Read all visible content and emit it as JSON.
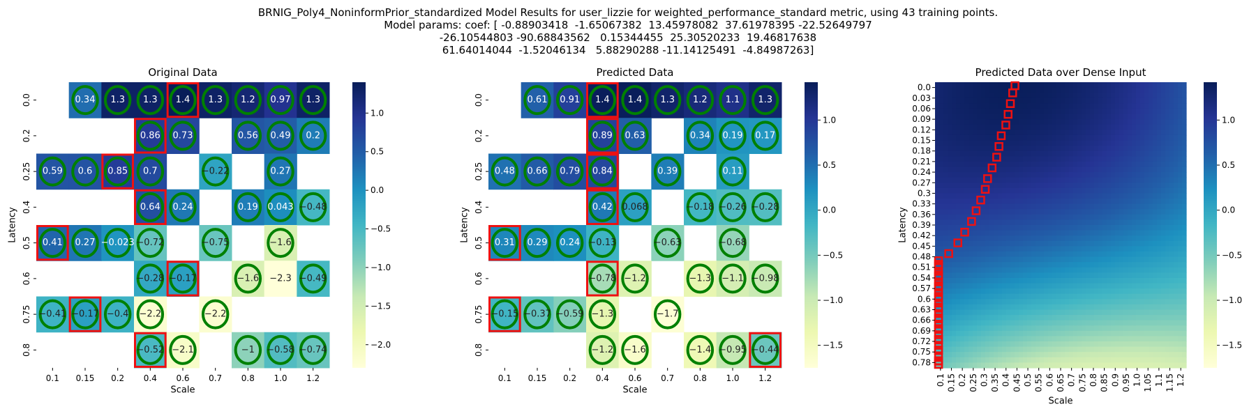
{
  "figure": {
    "title_lines": [
      "BRNIG_Poly4_NoninformPrior_standardized Model Results for user_lizzie for weighted_performance_standard metric, using 43 training points.",
      "Model params: coef: [ -0.88903418  -1.65067382  13.45978082  37.61978395 -22.52649797",
      "-26.10544803 -90.68843562   0.15344455  25.30520233  19.46817638",
      "61.64014044  -1.52046134   5.88290288 -11.14125491  -4.84987263]"
    ]
  },
  "colormap": {
    "name": "YlGnBu",
    "stops": [
      "#ffffd9",
      "#edf8b1",
      "#c7e9b4",
      "#7fcdbb",
      "#41b6c4",
      "#1d91c0",
      "#225ea8",
      "#253494",
      "#081d58"
    ],
    "ring_color": "#008000",
    "box_color": "#ee1111"
  },
  "chart_data": [
    {
      "type": "heatmap",
      "title": "Original Data",
      "xlabel": "Scale",
      "ylabel": "Latency",
      "x": [
        "0.1",
        "0.15",
        "0.2",
        "0.4",
        "0.6",
        "0.7",
        "0.8",
        "1.0",
        "1.2"
      ],
      "y": [
        "0.0",
        "0.2",
        "0.25",
        "0.4",
        "0.5",
        "0.6",
        "0.75",
        "0.8"
      ],
      "values": [
        [
          null,
          0.34,
          1.3,
          1.3,
          1.4,
          1.3,
          1.2,
          0.97,
          1.3
        ],
        [
          null,
          null,
          null,
          0.86,
          0.73,
          null,
          0.56,
          0.49,
          0.2
        ],
        [
          0.59,
          0.6,
          0.85,
          0.7,
          null,
          -0.22,
          null,
          0.27,
          null
        ],
        [
          null,
          null,
          null,
          0.64,
          0.24,
          null,
          0.19,
          0.043,
          -0.48
        ],
        [
          0.41,
          0.27,
          -0.023,
          -0.72,
          null,
          -0.75,
          null,
          -1.6,
          null
        ],
        [
          null,
          null,
          null,
          -0.28,
          -0.17,
          null,
          -1.6,
          -2.3,
          -0.49
        ],
        [
          -0.41,
          -0.17,
          -0.4,
          -2.2,
          null,
          -2.2,
          null,
          null,
          null
        ],
        [
          null,
          null,
          null,
          -0.52,
          -2.1,
          null,
          -1,
          -0.58,
          -0.74
        ]
      ],
      "rings": [
        [
          0,
          1
        ],
        [
          0,
          2
        ],
        [
          0,
          3
        ],
        [
          0,
          4
        ],
        [
          0,
          5
        ],
        [
          0,
          6
        ],
        [
          0,
          7
        ],
        [
          0,
          8
        ],
        [
          1,
          3
        ],
        [
          1,
          4
        ],
        [
          1,
          6
        ],
        [
          1,
          7
        ],
        [
          1,
          8
        ],
        [
          2,
          0
        ],
        [
          2,
          1
        ],
        [
          2,
          2
        ],
        [
          2,
          3
        ],
        [
          2,
          5
        ],
        [
          2,
          7
        ],
        [
          3,
          3
        ],
        [
          3,
          4
        ],
        [
          3,
          6
        ],
        [
          3,
          7
        ],
        [
          3,
          8
        ],
        [
          4,
          0
        ],
        [
          4,
          1
        ],
        [
          4,
          2
        ],
        [
          4,
          3
        ],
        [
          4,
          5
        ],
        [
          4,
          7
        ],
        [
          5,
          3
        ],
        [
          5,
          4
        ],
        [
          5,
          6
        ],
        [
          5,
          8
        ],
        [
          6,
          0
        ],
        [
          6,
          1
        ],
        [
          6,
          2
        ],
        [
          6,
          3
        ],
        [
          6,
          5
        ],
        [
          7,
          3
        ],
        [
          7,
          4
        ],
        [
          7,
          6
        ],
        [
          7,
          7
        ],
        [
          7,
          8
        ]
      ],
      "boxes": [
        [
          0,
          4
        ],
        [
          1,
          3
        ],
        [
          2,
          2
        ],
        [
          3,
          3
        ],
        [
          4,
          0
        ],
        [
          5,
          4
        ],
        [
          6,
          1
        ],
        [
          7,
          3
        ]
      ],
      "colorbar": {
        "vmin": -2.3,
        "vmax": 1.4,
        "ticks": [
          1.0,
          0.5,
          0.0,
          -0.5,
          -1.0,
          -1.5,
          -2.0
        ],
        "tick_labels": [
          "1.0",
          "0.5",
          "0.0",
          "−0.5",
          "−1.0",
          "−1.5",
          "−2.0"
        ]
      }
    },
    {
      "type": "heatmap",
      "title": "Predicted Data",
      "xlabel": "Scale",
      "ylabel": "Latency",
      "x": [
        "0.1",
        "0.15",
        "0.2",
        "0.4",
        "0.6",
        "0.7",
        "0.8",
        "1.0",
        "1.2"
      ],
      "y": [
        "0.0",
        "0.2",
        "0.25",
        "0.4",
        "0.5",
        "0.6",
        "0.75",
        "0.8"
      ],
      "values": [
        [
          null,
          0.61,
          0.91,
          1.4,
          1.4,
          1.3,
          1.2,
          1.1,
          1.3
        ],
        [
          null,
          null,
          null,
          0.89,
          0.63,
          null,
          0.34,
          0.19,
          0.17
        ],
        [
          0.48,
          0.66,
          0.79,
          0.84,
          null,
          0.39,
          null,
          0.11,
          null
        ],
        [
          null,
          null,
          null,
          0.42,
          0.068,
          null,
          -0.18,
          -0.26,
          -0.28
        ],
        [
          0.31,
          0.29,
          0.24,
          -0.13,
          null,
          -0.63,
          null,
          -0.68,
          null
        ],
        [
          null,
          null,
          null,
          -0.78,
          -1.2,
          null,
          -1.3,
          -1.1,
          -0.98
        ],
        [
          -0.15,
          -0.37,
          -0.59,
          -1.3,
          null,
          -1.7,
          null,
          null,
          null
        ],
        [
          null,
          null,
          null,
          -1.2,
          -1.6,
          null,
          -1.4,
          -0.95,
          -0.44
        ]
      ],
      "rings": [
        [
          0,
          1
        ],
        [
          0,
          2
        ],
        [
          0,
          3
        ],
        [
          0,
          4
        ],
        [
          0,
          5
        ],
        [
          0,
          6
        ],
        [
          0,
          7
        ],
        [
          0,
          8
        ],
        [
          1,
          3
        ],
        [
          1,
          4
        ],
        [
          1,
          6
        ],
        [
          1,
          7
        ],
        [
          1,
          8
        ],
        [
          2,
          0
        ],
        [
          2,
          1
        ],
        [
          2,
          2
        ],
        [
          2,
          3
        ],
        [
          2,
          5
        ],
        [
          2,
          7
        ],
        [
          3,
          3
        ],
        [
          3,
          4
        ],
        [
          3,
          6
        ],
        [
          3,
          7
        ],
        [
          3,
          8
        ],
        [
          4,
          0
        ],
        [
          4,
          1
        ],
        [
          4,
          2
        ],
        [
          4,
          3
        ],
        [
          4,
          5
        ],
        [
          4,
          7
        ],
        [
          5,
          3
        ],
        [
          5,
          4
        ],
        [
          5,
          6
        ],
        [
          5,
          7
        ],
        [
          5,
          8
        ],
        [
          6,
          0
        ],
        [
          6,
          1
        ],
        [
          6,
          2
        ],
        [
          6,
          3
        ],
        [
          6,
          5
        ],
        [
          7,
          3
        ],
        [
          7,
          4
        ],
        [
          7,
          6
        ],
        [
          7,
          7
        ],
        [
          7,
          8
        ]
      ],
      "boxes": [
        [
          0,
          3
        ],
        [
          1,
          3
        ],
        [
          2,
          3
        ],
        [
          3,
          3
        ],
        [
          4,
          0
        ],
        [
          5,
          3
        ],
        [
          6,
          0
        ],
        [
          7,
          8
        ]
      ],
      "colorbar": {
        "vmin": -1.75,
        "vmax": 1.42,
        "ticks": [
          1.0,
          0.5,
          0.0,
          -0.5,
          -1.0,
          -1.5
        ],
        "tick_labels": [
          "1.0",
          "0.5",
          "0.0",
          "−0.5",
          "−1.0",
          "−1.5"
        ]
      }
    },
    {
      "type": "heatmap",
      "title": "Predicted Data over Dense Input",
      "xlabel": "Scale",
      "ylabel": "Latency",
      "x": [
        "0.1",
        "0.15",
        "0.2",
        "0.25",
        "0.3",
        "0.35",
        "0.4",
        "0.45",
        "0.5",
        "0.55",
        "0.6",
        "0.65",
        "0.7",
        "0.75",
        "0.8",
        "0.85",
        "0.9",
        "0.95",
        "1.0",
        "1.05",
        "1.1",
        "1.15",
        "1.2"
      ],
      "y": [
        "0.0",
        "0.03",
        "0.06",
        "0.09",
        "0.12",
        "0.15",
        "0.18",
        "0.21",
        "0.24",
        "0.27",
        "0.3",
        "0.33",
        "0.36",
        "0.39",
        "0.42",
        "0.45",
        "0.48",
        "0.51",
        "0.54",
        "0.57",
        "0.6",
        "0.63",
        "0.66",
        "0.69",
        "0.72",
        "0.75",
        "0.78"
      ],
      "x_range": [
        0.1,
        1.2
      ],
      "y_range": [
        0.0,
        0.8
      ],
      "coef": [
        -0.88903418,
        -1.65067382,
        13.45978082,
        37.61978395,
        -22.52649797,
        -26.10544803,
        -90.68843562,
        0.15344455,
        25.30520233,
        19.46817638,
        61.64014044,
        -1.52046134,
        5.88290288,
        -11.14125491,
        -4.84987263
      ],
      "argmax_path": [
        [
          0.0,
          0.45
        ],
        [
          0.03,
          0.44
        ],
        [
          0.06,
          0.43
        ],
        [
          0.09,
          0.42
        ],
        [
          0.12,
          0.41
        ],
        [
          0.15,
          0.39
        ],
        [
          0.18,
          0.38
        ],
        [
          0.21,
          0.37
        ],
        [
          0.24,
          0.35
        ],
        [
          0.27,
          0.33
        ],
        [
          0.3,
          0.32
        ],
        [
          0.33,
          0.3
        ],
        [
          0.36,
          0.28
        ],
        [
          0.39,
          0.26
        ],
        [
          0.42,
          0.23
        ],
        [
          0.45,
          0.2
        ],
        [
          0.48,
          0.16
        ],
        [
          0.51,
          0.11
        ],
        [
          0.54,
          0.1
        ],
        [
          0.57,
          0.1
        ],
        [
          0.6,
          0.1
        ],
        [
          0.63,
          0.1
        ],
        [
          0.66,
          0.1
        ],
        [
          0.69,
          0.1
        ],
        [
          0.72,
          0.1
        ],
        [
          0.75,
          0.1
        ],
        [
          0.78,
          0.1
        ],
        [
          0.8,
          0.1
        ]
      ],
      "colorbar": {
        "vmin": -1.75,
        "vmax": 1.42,
        "ticks": [
          1.0,
          0.5,
          0.0,
          -0.5,
          -1.0,
          -1.5
        ],
        "tick_labels": [
          "1.0",
          "0.5",
          "0.0",
          "−0.5",
          "−1.0",
          "−1.5"
        ]
      }
    }
  ]
}
